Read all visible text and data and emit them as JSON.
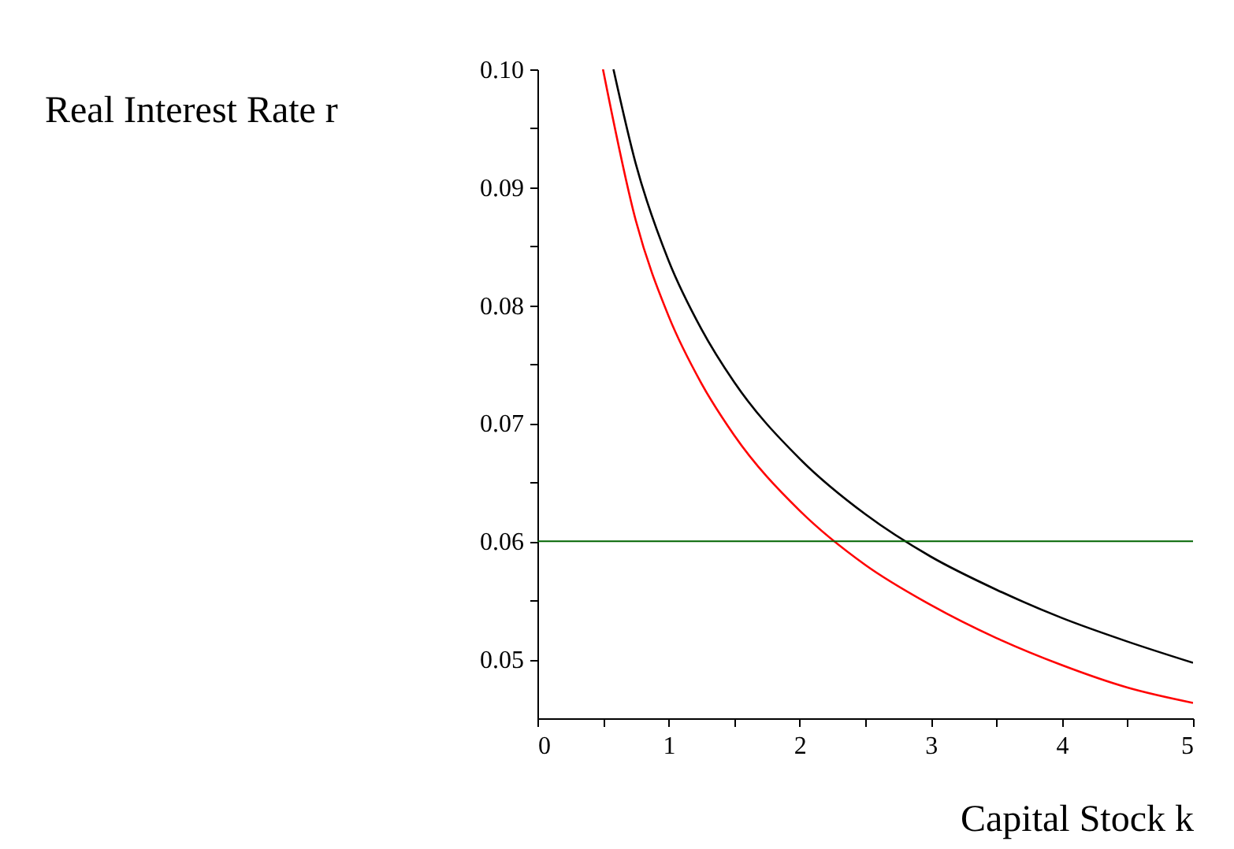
{
  "chart_data": {
    "type": "line",
    "xlabel": "Capital Stock k",
    "ylabel": "Real Interest Rate r",
    "series": [
      {
        "color": "#ff0000",
        "x": [
          0.5,
          0.75,
          1,
          1.25,
          1.5,
          2,
          2.5,
          3,
          3.5,
          4,
          4.5,
          5
        ],
        "values": [
          0.1,
          0.0872,
          0.0791,
          0.0734,
          0.069,
          0.0626,
          0.058,
          0.0546,
          0.0518,
          0.0495,
          0.0476,
          0.0463
        ]
      },
      {
        "color": "#000000",
        "x": [
          0.58,
          0.75,
          1,
          1.25,
          1.5,
          2,
          2.5,
          3,
          3.5,
          4,
          4.5,
          5
        ],
        "values": [
          0.1,
          0.092,
          0.0838,
          0.078,
          0.0735,
          0.067,
          0.0623,
          0.0587,
          0.0559,
          0.0535,
          0.0515,
          0.0497
        ]
      }
    ],
    "ref_lines": [
      {
        "axis": "y",
        "value": 0.06,
        "color": "#006400"
      }
    ],
    "xlim": [
      0,
      5
    ],
    "ylim": [
      0.045,
      0.1
    ],
    "xticks": [
      0,
      {
        "value": 0.5,
        "label": null
      },
      1,
      {
        "value": 1.5,
        "label": null
      },
      2,
      {
        "value": 2.5,
        "label": null
      },
      3,
      {
        "value": 3.5,
        "label": null
      },
      4,
      {
        "value": 4.5,
        "label": null
      },
      5
    ],
    "yticks": [
      {
        "value": 0.05,
        "label": "0.05"
      },
      {
        "value": 0.055,
        "label": null
      },
      {
        "value": 0.06,
        "label": "0.06"
      },
      {
        "value": 0.065,
        "label": null
      },
      {
        "value": 0.07,
        "label": "0.07"
      },
      {
        "value": 0.075,
        "label": null
      },
      {
        "value": 0.08,
        "label": "0.08"
      },
      {
        "value": 0.085,
        "label": null
      },
      {
        "value": 0.09,
        "label": "0.09"
      },
      {
        "value": 0.095,
        "label": null
      },
      {
        "value": 0.1,
        "label": "0.10"
      }
    ],
    "grid": false,
    "legend": false,
    "marker": "none",
    "line_style": "solid"
  }
}
